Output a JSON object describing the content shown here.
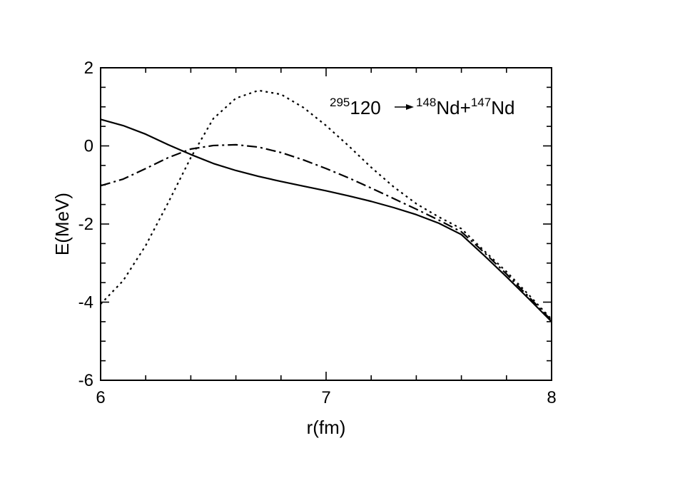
{
  "chart_data": {
    "type": "line",
    "title": "",
    "xlabel": "r(fm)",
    "ylabel": "E(MeV)",
    "xlim": [
      6,
      8
    ],
    "ylim": [
      -6,
      2
    ],
    "x_ticks": [
      6,
      7,
      8
    ],
    "x_tick_labels": [
      "6",
      "7",
      "8"
    ],
    "y_ticks": [
      -6,
      -4,
      -2,
      0,
      2
    ],
    "y_tick_labels": [
      "-6",
      "-4",
      "-2",
      "0",
      "2"
    ],
    "grid": false,
    "legend": "none",
    "annotation": {
      "parent_mass": "295",
      "parent_element": "120",
      "arrow": "→",
      "fragment1_mass": "148",
      "fragment1_element": "Nd",
      "plus": "+",
      "fragment2_mass": "147",
      "fragment2_element": "Nd"
    },
    "series": [
      {
        "style": "solid",
        "x": [
          6.0,
          6.1,
          6.2,
          6.3,
          6.4,
          6.5,
          6.6,
          6.7,
          6.8,
          6.9,
          7.0,
          7.1,
          7.2,
          7.3,
          7.4,
          7.5,
          7.6,
          7.7,
          7.8,
          7.9,
          8.0
        ],
        "y": [
          0.68,
          0.52,
          0.3,
          0.03,
          -0.22,
          -0.45,
          -0.63,
          -0.78,
          -0.91,
          -1.03,
          -1.15,
          -1.28,
          -1.42,
          -1.58,
          -1.76,
          -1.98,
          -2.27,
          -2.8,
          -3.35,
          -3.92,
          -4.5
        ]
      },
      {
        "style": "dash-dot",
        "x": [
          6.0,
          6.1,
          6.2,
          6.3,
          6.4,
          6.5,
          6.6,
          6.7,
          6.8,
          6.9,
          7.0,
          7.1,
          7.2,
          7.3,
          7.4,
          7.5,
          7.6,
          7.7,
          7.8,
          7.9,
          8.0
        ],
        "y": [
          -1.02,
          -0.85,
          -0.58,
          -0.3,
          -0.08,
          0.01,
          0.03,
          -0.03,
          -0.17,
          -0.36,
          -0.58,
          -0.82,
          -1.08,
          -1.35,
          -1.62,
          -1.9,
          -2.2,
          -2.72,
          -3.28,
          -3.87,
          -4.47
        ]
      },
      {
        "style": "dotted",
        "x": [
          6.0,
          6.1,
          6.2,
          6.3,
          6.4,
          6.5,
          6.6,
          6.7,
          6.8,
          6.9,
          7.0,
          7.1,
          7.2,
          7.3,
          7.4,
          7.5,
          7.6,
          7.7,
          7.8,
          7.9,
          8.0
        ],
        "y": [
          -4.05,
          -3.45,
          -2.55,
          -1.45,
          -0.3,
          0.7,
          1.22,
          1.42,
          1.32,
          0.98,
          0.52,
          0.0,
          -0.55,
          -1.05,
          -1.48,
          -1.82,
          -2.12,
          -2.68,
          -3.22,
          -3.82,
          -4.44
        ]
      }
    ]
  }
}
